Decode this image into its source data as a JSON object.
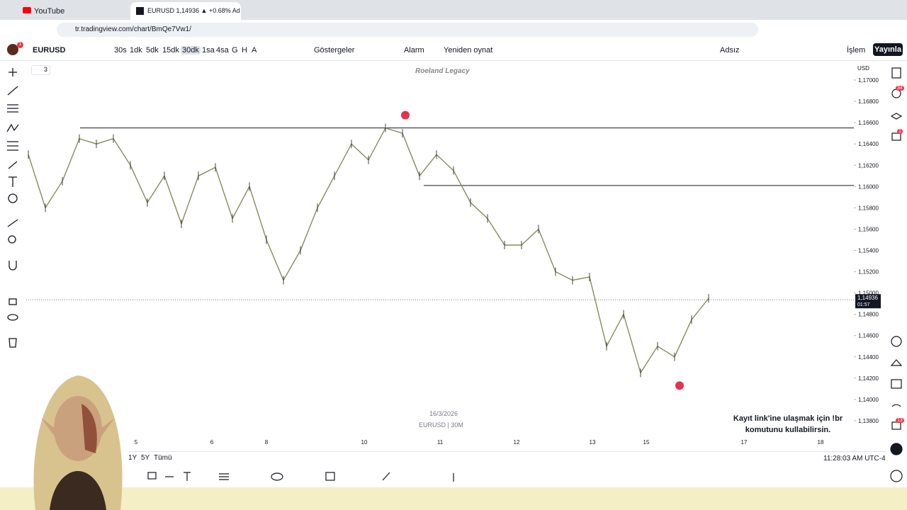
{
  "browser": {
    "tabs": [
      "YouTube",
      "EURUSD 1,14936 ▲ +0.68% Ad"
    ],
    "url": "tr.tradingview.com/chart/BmQe7Vw1/"
  },
  "toolbar": {
    "symbol": "EURUSD",
    "intervals": [
      "30s",
      "1dk",
      "5dk",
      "15dk",
      "30dk",
      "1sa",
      "4sa",
      "G",
      "H",
      "A"
    ],
    "indicators": "Göstergeler",
    "alarm": "Alarm",
    "replay": "Yeniden oynat",
    "layout_name": "Adsız",
    "trade": "İşlem",
    "publish": "Yayınla"
  },
  "badges": {
    "profile": "1",
    "alerts": "34",
    "chat": "1",
    "notifications": "13"
  },
  "chart": {
    "watermark": "Roeland Legacy",
    "collapse_count": "3",
    "currency": "USD",
    "date_label": "16/3/2026",
    "symbol_label": "EURUSD | 30M",
    "price_axis": {
      "ylim": [
        1.1372,
        1.1718
      ],
      "ticks": [
        {
          "value": 1.17,
          "label": "1,17000"
        },
        {
          "value": 1.168,
          "label": "1,16800"
        },
        {
          "value": 1.166,
          "label": "1,16600"
        },
        {
          "value": 1.164,
          "label": "1,16400"
        },
        {
          "value": 1.162,
          "label": "1,16200"
        },
        {
          "value": 1.16,
          "label": "1,16000"
        },
        {
          "value": 1.158,
          "label": "1,15800"
        },
        {
          "value": 1.156,
          "label": "1,15600"
        },
        {
          "value": 1.154,
          "label": "1,15400"
        },
        {
          "value": 1.152,
          "label": "1,15200"
        },
        {
          "value": 1.15,
          "label": "1,15000"
        },
        {
          "value": 1.148,
          "label": "1,14800"
        },
        {
          "value": 1.146,
          "label": "1,14600"
        },
        {
          "value": 1.144,
          "label": "1,14400"
        },
        {
          "value": 1.142,
          "label": "1,14200"
        },
        {
          "value": 1.14,
          "label": "1,14000"
        },
        {
          "value": 1.138,
          "label": "1,13800"
        }
      ]
    },
    "time_labels": [
      "5",
      "6",
      "8",
      "10",
      "11",
      "12",
      "13",
      "15",
      "17",
      "18"
    ],
    "prices": [
      1.163,
      1.158,
      1.1605,
      1.1645,
      1.164,
      1.1645,
      1.162,
      1.1585,
      1.161,
      1.1565,
      1.161,
      1.1618,
      1.157,
      1.16,
      1.155,
      1.1512,
      1.154,
      1.158,
      1.161,
      1.164,
      1.1625,
      1.1655,
      1.165,
      1.161,
      1.163,
      1.1615,
      1.1585,
      1.157,
      1.1545,
      1.1545,
      1.156,
      1.152,
      1.1512,
      1.1515,
      1.145,
      1.148,
      1.1425,
      1.145,
      1.144,
      1.1475,
      1.1495
    ],
    "levels": [
      1.1655,
      1.1601
    ],
    "markers": [
      1.1667,
      1.1413
    ],
    "current_price": {
      "value": 1.14936,
      "label": "1,14936",
      "countdown": "01:57"
    },
    "ranges": [
      "1Y",
      "5Y",
      "Tümü"
    ],
    "clock": "11:28:03 AM UTC-4"
  },
  "overlay_text": "Kayıt link'ine ulaşmak için !br komutunu kullabilirsin."
}
